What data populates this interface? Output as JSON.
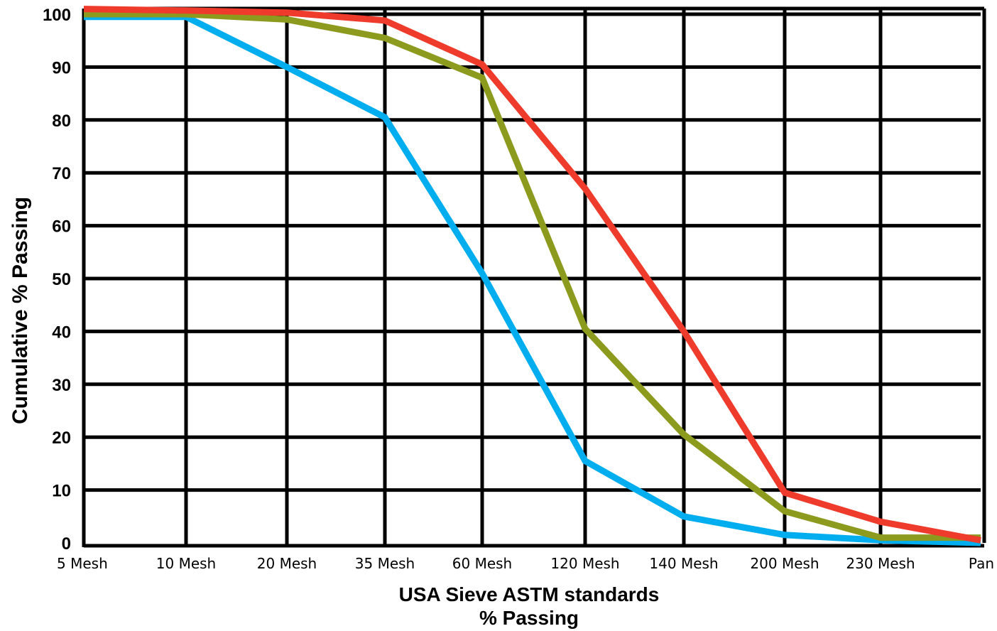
{
  "chart_data": {
    "type": "line",
    "xlabel_lines": [
      "USA Sieve ASTM standards",
      "% Passing"
    ],
    "ylabel": "Cumulative % Passing",
    "categories": [
      "5 Mesh",
      "10 Mesh",
      "20 Mesh",
      "35 Mesh",
      "60 Mesh",
      "120 Mesh",
      "140 Mesh",
      "200 Mesh",
      "230 Mesh",
      "Pan"
    ],
    "ylim": [
      0,
      100
    ],
    "yticks": [
      0,
      10,
      20,
      30,
      40,
      50,
      60,
      70,
      80,
      90,
      100
    ],
    "grid": true,
    "series": [
      {
        "color": "#00aeef",
        "values": [
          99.5,
          99.5,
          90,
          80.5,
          51,
          15.5,
          5,
          1.5,
          0.5,
          0
        ]
      },
      {
        "color": "#8c9a1d",
        "values": [
          100,
          100,
          99,
          95.5,
          88,
          40.5,
          20.5,
          6,
          1,
          1
        ]
      },
      {
        "color": "#ef3b2c",
        "values": [
          101,
          100.7,
          100.3,
          98.8,
          90.5,
          67,
          40,
          9.5,
          4,
          0.5
        ]
      }
    ]
  }
}
